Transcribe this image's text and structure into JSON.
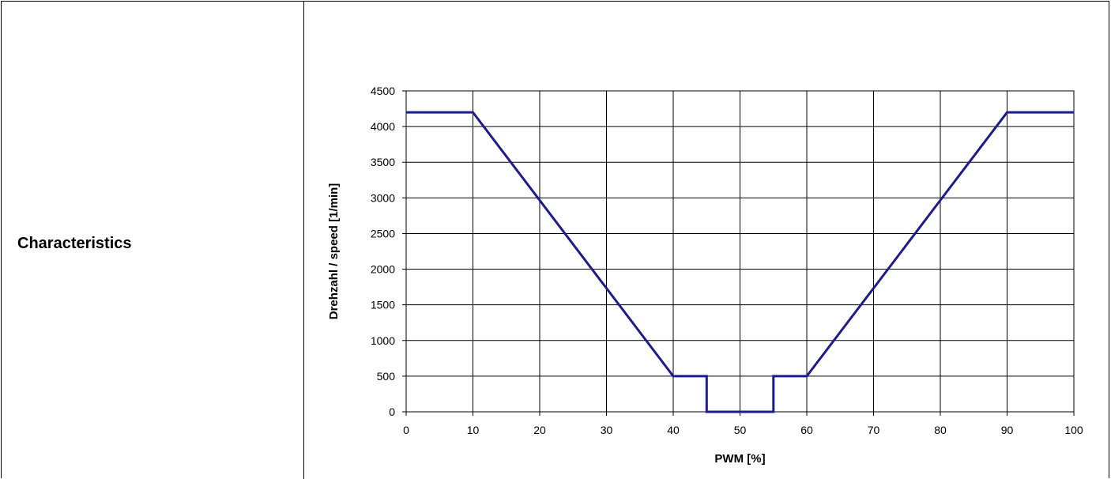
{
  "table": {
    "row_label": "Characteristics"
  },
  "chart_data": {
    "type": "line",
    "xlabel": "PWM [%]",
    "ylabel": "Drehzahl / speed  [1/min]",
    "xlim": [
      0,
      100
    ],
    "ylim": [
      0,
      4500
    ],
    "xticks": [
      0,
      10,
      20,
      30,
      40,
      50,
      60,
      70,
      80,
      90,
      100
    ],
    "yticks": [
      0,
      500,
      1000,
      1500,
      2000,
      2500,
      3000,
      3500,
      4000,
      4500
    ],
    "grid": true,
    "series": [
      {
        "color": "#1c1c8c",
        "points": [
          [
            0,
            4200
          ],
          [
            10,
            4200
          ],
          [
            40,
            500
          ],
          [
            45,
            500
          ],
          [
            45,
            0
          ],
          [
            55,
            0
          ],
          [
            55,
            500
          ],
          [
            60,
            500
          ],
          [
            90,
            4200
          ],
          [
            100,
            4200
          ]
        ]
      }
    ]
  }
}
